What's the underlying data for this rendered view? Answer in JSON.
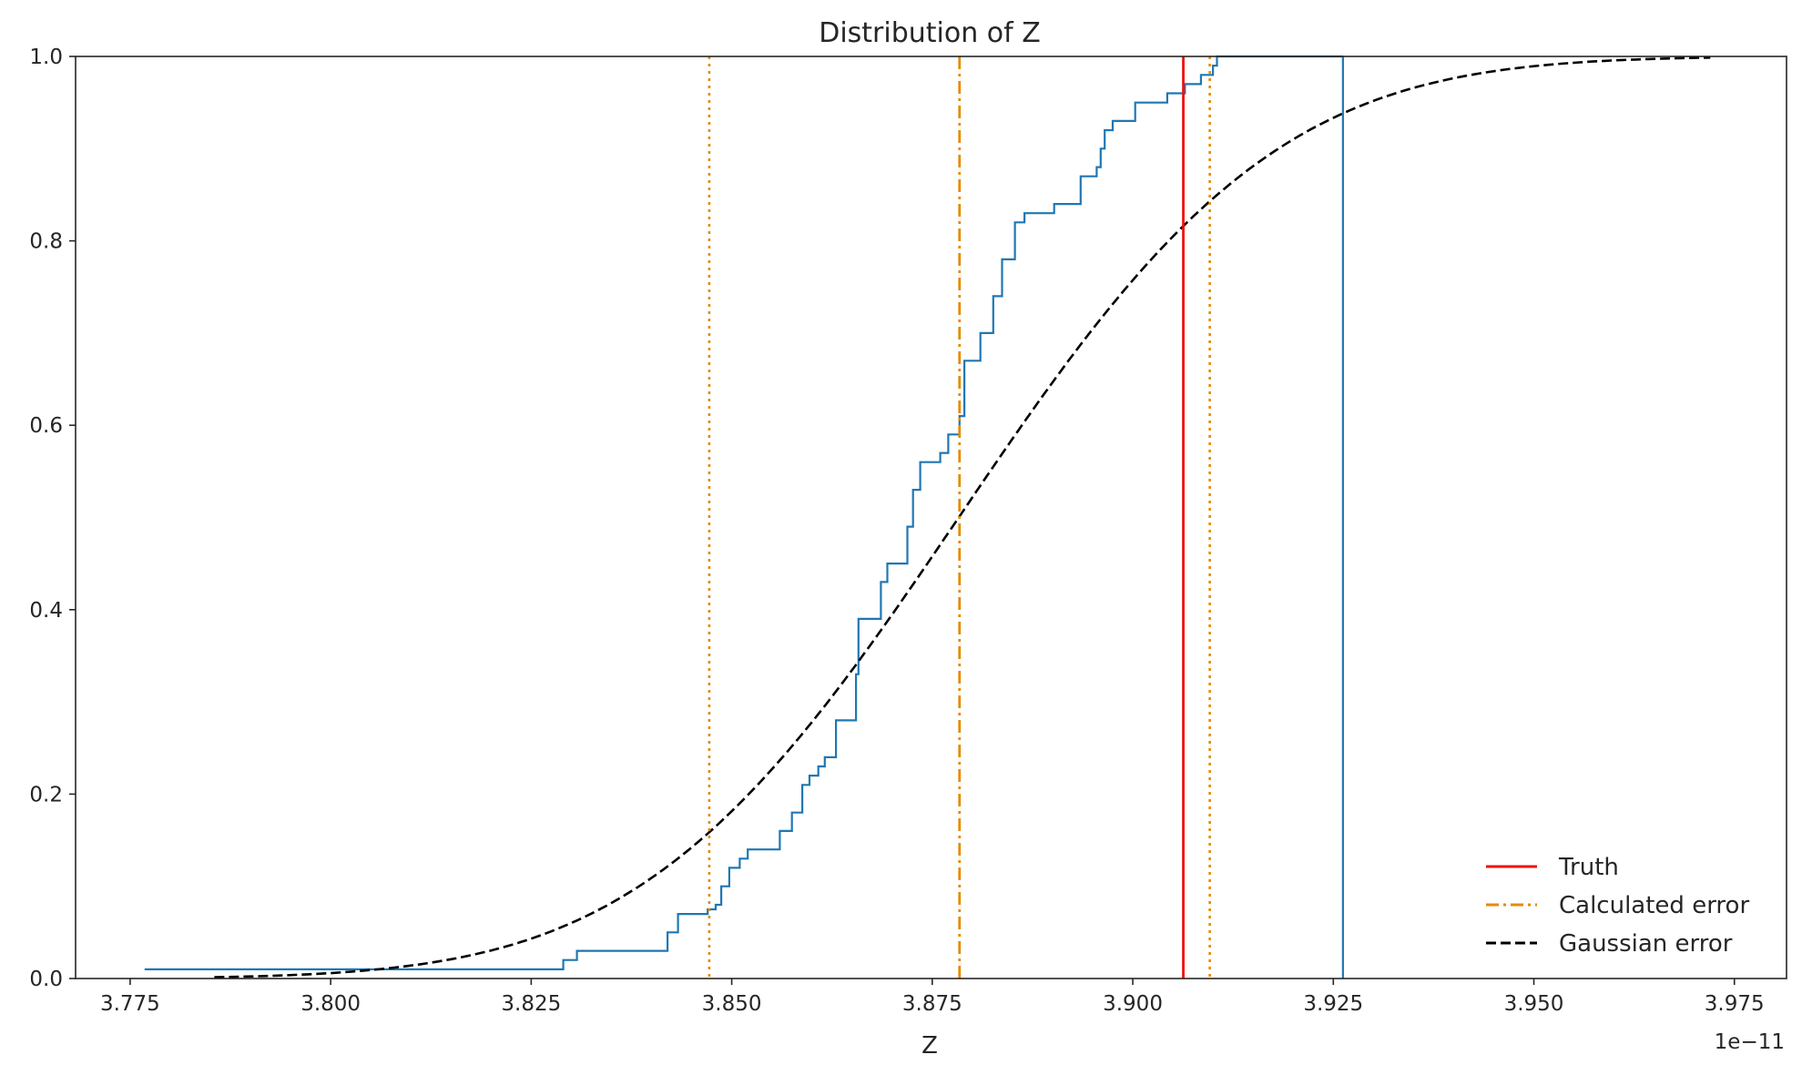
{
  "chart_data": {
    "type": "line",
    "title": "Distribution of Z",
    "xlabel": "Z",
    "ylabel": "",
    "x_offset_label": "1e−11",
    "xlim": [
      3.7682,
      3.9815
    ],
    "ylim": [
      0,
      1.0
    ],
    "x_ticks": [
      3.775,
      3.8,
      3.825,
      3.85,
      3.875,
      3.9,
      3.925,
      3.95,
      3.975
    ],
    "x_tick_labels": [
      "3.775",
      "3.800",
      "3.825",
      "3.850",
      "3.875",
      "3.900",
      "3.925",
      "3.950",
      "3.975"
    ],
    "y_ticks": [
      0,
      0.2,
      0.4,
      0.6,
      0.8,
      1.0
    ],
    "y_tick_labels": [
      "0.0",
      "0.2",
      "0.4",
      "0.6",
      "0.8",
      "1.0"
    ],
    "grid": false,
    "legend_position": "bottom-right",
    "colors": {
      "ecdf": "#1f77b4",
      "truth": "#ee1111",
      "calculated": "#e68a00",
      "gaussian": "#000000",
      "axes": "#262626"
    },
    "series": [
      {
        "kind": "ecdf-step",
        "x": [
          3.7768,
          3.829,
          3.8307,
          3.842,
          3.8433,
          3.847,
          3.848,
          3.8487,
          3.8497,
          3.851,
          3.852,
          3.853,
          3.856,
          3.8575,
          3.8588,
          3.8597,
          3.8608,
          3.8616,
          3.8625,
          3.863,
          3.8643,
          3.8655,
          3.8658,
          3.8664,
          3.8686,
          3.8694,
          3.8717,
          3.8719,
          3.8726,
          3.8735,
          3.876,
          3.877,
          3.8784,
          3.879,
          3.8802,
          3.881,
          3.882,
          3.8826,
          3.8837,
          3.8853,
          3.8865,
          3.8875,
          3.8902,
          3.8935,
          3.8949,
          3.8955,
          3.896,
          3.8965,
          3.8969,
          3.8975,
          3.9003,
          3.9008,
          3.903,
          3.9043,
          3.9057,
          3.9065,
          3.9085,
          3.91,
          3.9105,
          3.9115,
          3.9141,
          3.915,
          3.917,
          3.9177,
          3.9185,
          3.92,
          3.921,
          3.9218,
          3.9225,
          3.9237,
          3.9248,
          3.9262
        ],
        "y": [
          0.01,
          0.02,
          0.03,
          0.05,
          0.07,
          0.075,
          0.08,
          0.1,
          0.12,
          0.13,
          0.14,
          0.14,
          0.16,
          0.18,
          0.21,
          0.22,
          0.23,
          0.24,
          0.24,
          0.28,
          0.28,
          0.33,
          0.39,
          0.39,
          0.43,
          0.45,
          0.45,
          0.49,
          0.53,
          0.56,
          0.57,
          0.59,
          0.61,
          0.67,
          0.67,
          0.7,
          0.7,
          0.74,
          0.78,
          0.82,
          0.83,
          0.83,
          0.84,
          0.87,
          0.87,
          0.88,
          0.9,
          0.92,
          0.92,
          0.93,
          0.95,
          0.95,
          0.95,
          0.96,
          0.96,
          0.97,
          0.98,
          0.99,
          1.0,
          1.0,
          1.0,
          1.0,
          1.0,
          1.0,
          1.0,
          1.0,
          1.0,
          1.0,
          1.0,
          1.0,
          1.0,
          1.0
        ],
        "end_x": 3.9262
      },
      {
        "name": "Truth",
        "kind": "vline",
        "x": 3.9063,
        "style": "solid"
      },
      {
        "name": "Calculated error",
        "kind": "vline",
        "x": 3.8784,
        "style": "dashdot",
        "bounds": [
          3.8472,
          3.9096
        ]
      },
      {
        "name": "Gaussian error",
        "kind": "normal-cdf",
        "mean": 3.8783,
        "sd": 0.0311,
        "x_range": [
          3.7855,
          3.972
        ],
        "style": "dashed"
      }
    ]
  }
}
